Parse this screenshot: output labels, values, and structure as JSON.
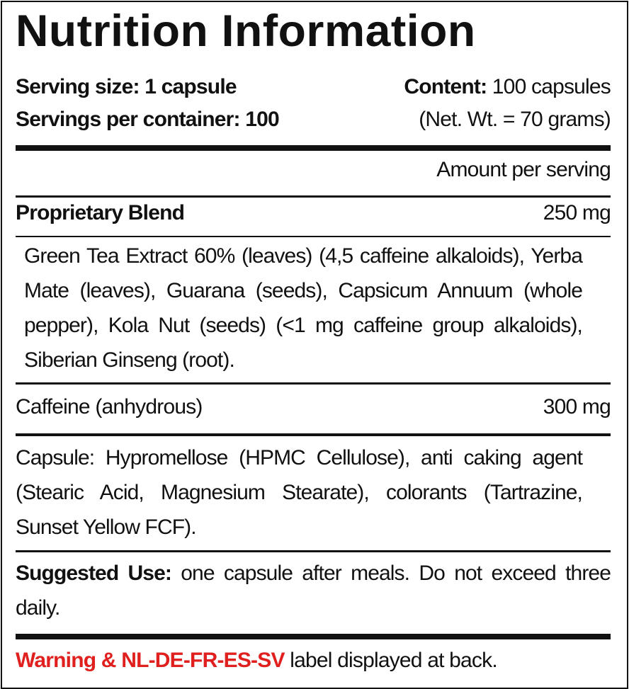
{
  "title": "Nutrition Information",
  "serving_size": "Serving size: 1 capsule",
  "servings_per_container": "Servings per container: 100",
  "content_label": "Content:",
  "content_value": " 100 capsules",
  "net_weight": "(Net. Wt. = 70 grams)",
  "amount_per_serving": "Amount per serving",
  "blend": {
    "name": "Proprietary Blend",
    "amount": "250 mg",
    "ingredients": "Green Tea Extract 60% (leaves) (4,5 caffeine alkaloids), Yerba Mate (leaves), Guarana (seeds), Capsicum Annuum (whole pepper), Kola Nut (seeds) (<1 mg caffeine group alkaloids), Siberian Ginseng (root)."
  },
  "caffeine": {
    "name": "Caffeine (anhydrous)",
    "amount": "300 mg"
  },
  "capsule_text": "Capsule: Hypromellose (HPMC Cellulose), anti caking agent (Stearic Acid, Magnesium Stearate), colorants (Tartrazine, Sunset Yellow FCF).",
  "suggested_use": {
    "label": "Suggested Use:",
    "text": " one capsule after meals. Do not exceed three daily."
  },
  "warning": {
    "highlight": "Warning & NL-DE-FR-ES-SV",
    "text": " label displayed at back.",
    "color": "#e0201e"
  }
}
